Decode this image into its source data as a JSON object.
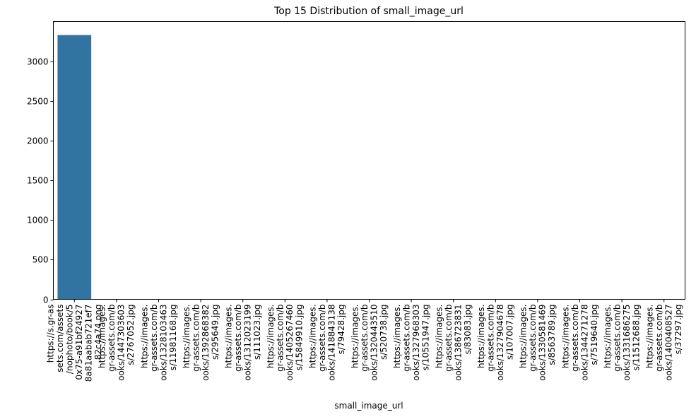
{
  "chart_data": {
    "type": "bar",
    "title": "Top 15 Distribution of small_image_url",
    "xlabel": "small_image_url",
    "ylabel": "",
    "ylim": [
      0,
      3500
    ],
    "yticks": [
      0,
      500,
      1000,
      1500,
      2000,
      2500,
      3000
    ],
    "grid": false,
    "bar_color": "#3274a1",
    "categories": [
      [
        "https://s.gr-as",
        "sets.com/assets",
        "/nophoto/book/5",
        "0x75-a91bf24927",
        "8a81aabab721ef7",
        "82c4a74.png"
      ],
      [
        "https://images.",
        "gr-assets.com/b",
        "ooks/1447303603",
        "s/2767052.jpg"
      ],
      [
        "https://images.",
        "gr-assets.com/b",
        "ooks/1328103463",
        "s/11981168.jpg"
      ],
      [
        "https://images.",
        "gr-assets.com/b",
        "ooks/1392868382",
        "s/295649.jpg"
      ],
      [
        "https://images.",
        "gr-assets.com/b",
        "ooks/1312023199",
        "s/111023.jpg"
      ],
      [
        "https://images.",
        "gr-assets.com/b",
        "ooks/1405267460",
        "s/15849910.jpg"
      ],
      [
        "https://images.",
        "gr-assets.com/b",
        "ooks/1418843138",
        "s/79428.jpg"
      ],
      [
        "https://images.",
        "gr-assets.com/b",
        "ooks/1320443510",
        "s/520738.jpg"
      ],
      [
        "https://images.",
        "gr-assets.com/b",
        "ooks/1327968303",
        "s/10551947.jpg"
      ],
      [
        "https://images.",
        "gr-assets.com/b",
        "ooks/1386723831",
        "s/83083.jpg"
      ],
      [
        "https://images.",
        "gr-assets.com/b",
        "ooks/1327904678",
        "s/107007.jpg"
      ],
      [
        "https://images.",
        "gr-assets.com/b",
        "ooks/1330581469",
        "s/8563789.jpg"
      ],
      [
        "https://images.",
        "gr-assets.com/b",
        "ooks/1344271278",
        "s/7519640.jpg"
      ],
      [
        "https://images.",
        "gr-assets.com/b",
        "ooks/1331686275",
        "s/11512688.jpg"
      ],
      [
        "https://images.",
        "gr-assets.com/b",
        "ooks/1400408527",
        "s/37297.jpg"
      ]
    ],
    "values": [
      3330,
      1,
      1,
      1,
      1,
      1,
      1,
      1,
      1,
      1,
      1,
      1,
      1,
      1,
      1
    ]
  }
}
